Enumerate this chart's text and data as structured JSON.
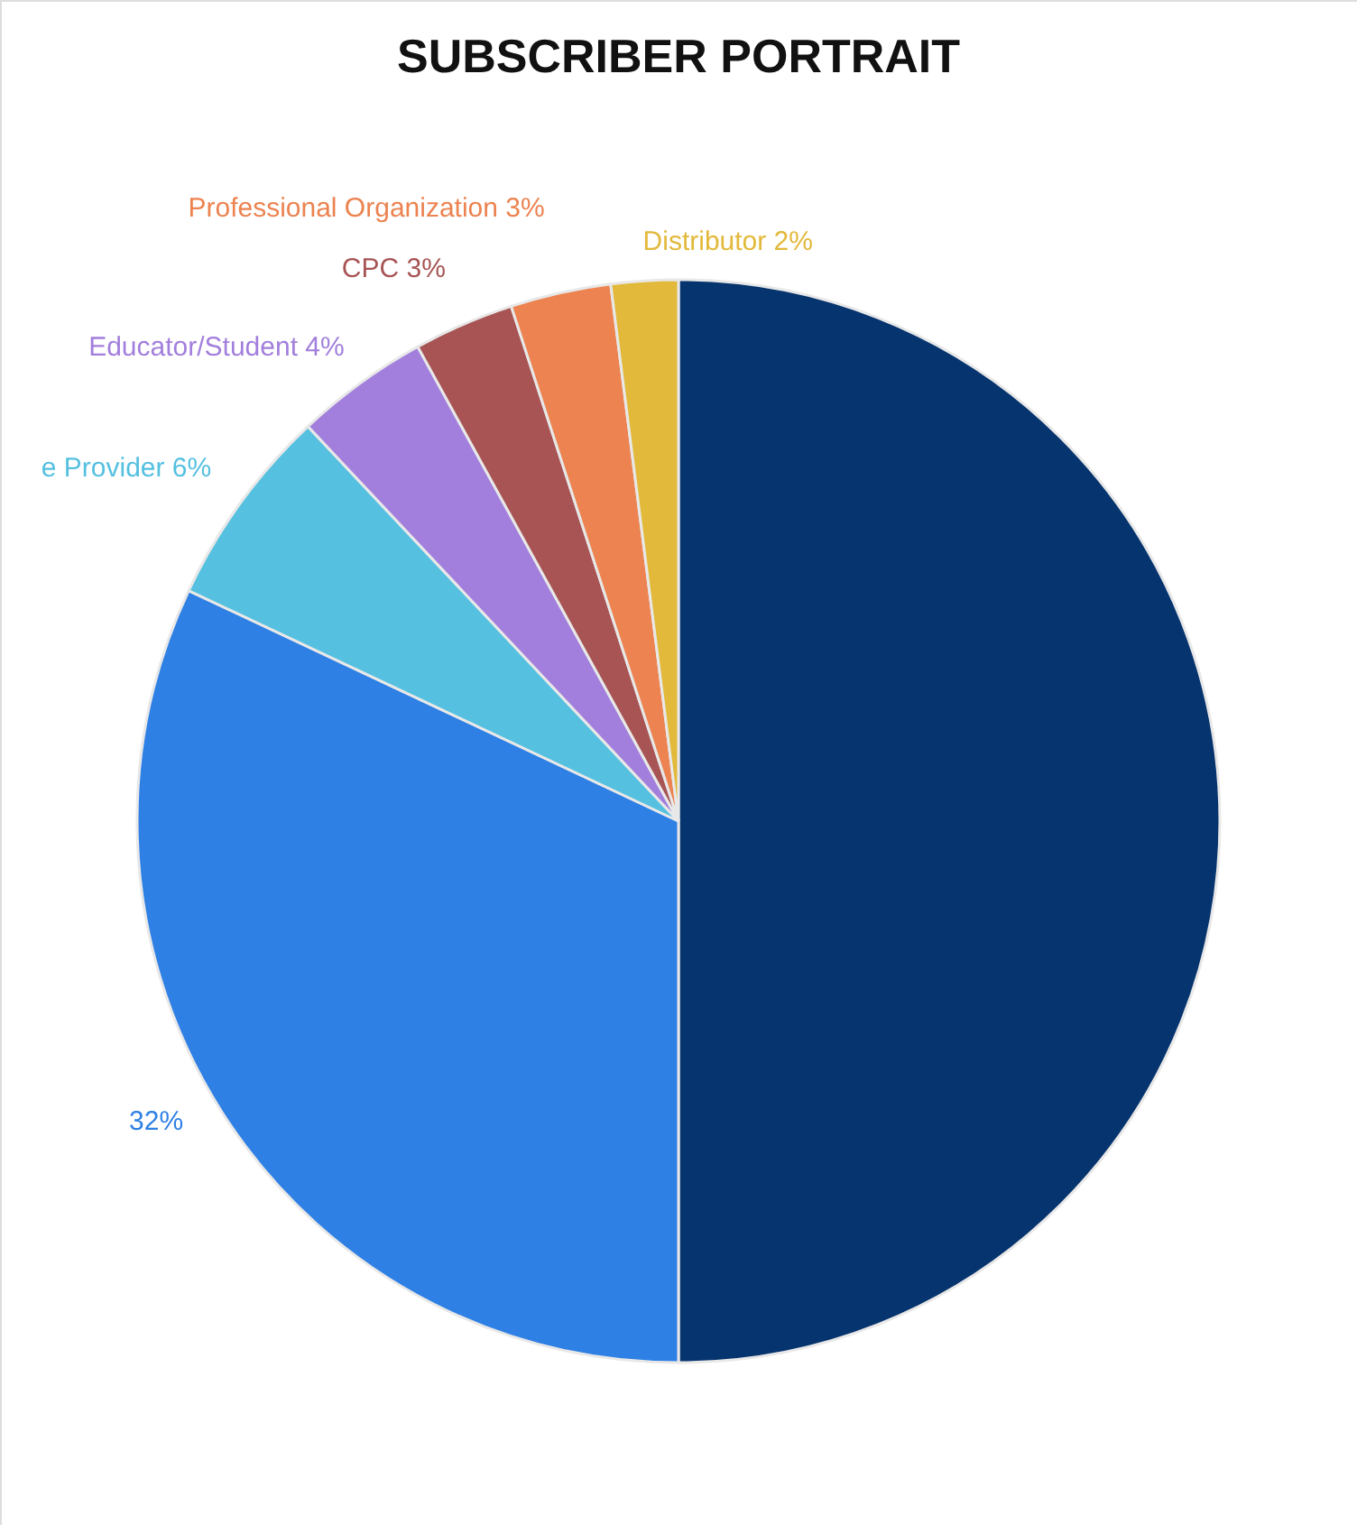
{
  "chart_data": {
    "type": "pie",
    "title": "SUBSCRIBER PORTRAIT",
    "categories": [
      null,
      null,
      "e Provider",
      "Educator/Student",
      "CPC",
      "Professional Organization",
      "Distributor"
    ],
    "values": [
      50,
      32,
      6,
      4,
      3,
      3,
      2
    ],
    "value_labels": [
      null,
      "32%",
      "6%",
      "4%",
      "3%",
      "3%",
      "2%"
    ],
    "colors": [
      "#06346e",
      "#2f80e4",
      "#55c0e0",
      "#a27fdc",
      "#a85454",
      "#ec8350",
      "#e2b93a"
    ]
  }
}
